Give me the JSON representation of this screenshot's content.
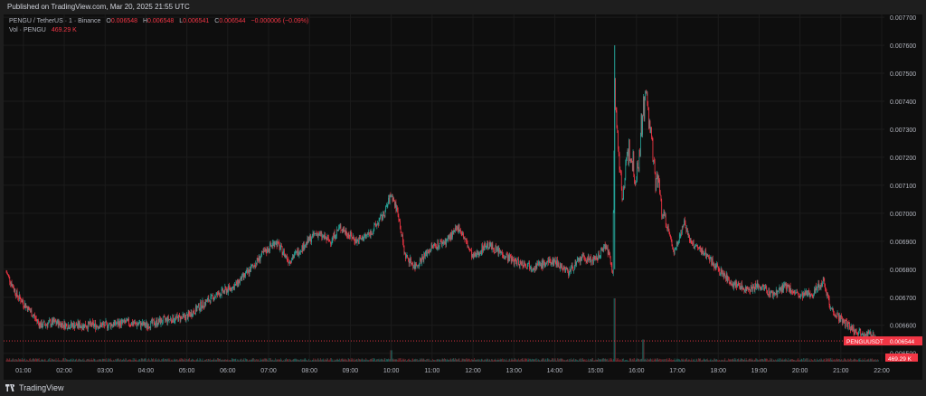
{
  "header": {
    "published": "Published on TradingView.com, Mar 20, 2025 21:55 UTC"
  },
  "legend": {
    "symbol": "PENGU / TetherUS · 1 · Binance",
    "o_label": "O",
    "o": "0.006548",
    "h_label": "H",
    "h": "0.006548",
    "l_label": "L",
    "l": "0.006541",
    "c_label": "C",
    "c": "0.006544",
    "change": "−0.000006 (−0.09%)",
    "vol_label": "Vol · PENGU",
    "vol_value": "469.29 K"
  },
  "price_tag": {
    "symbol": "PENGUUSDT",
    "price": "0.006544"
  },
  "volume_tag": "469.29 K",
  "footer": {
    "brand": "TradingView"
  },
  "colors": {
    "up": "#26a69a",
    "down": "#f23645",
    "background": "#0e0e0e",
    "grid": "#1c1c1c"
  },
  "chart_data": {
    "type": "candlestick",
    "y_ticks": [
      "0.007700",
      "0.007600",
      "0.007500",
      "0.007400",
      "0.007300",
      "0.007200",
      "0.007100",
      "0.007000",
      "0.006900",
      "0.006800",
      "0.006700",
      "0.006600",
      "0.006500"
    ],
    "ylim": [
      0.00647,
      0.00771
    ],
    "x_ticks": [
      "01:00",
      "02:00",
      "03:00",
      "04:00",
      "05:00",
      "06:00",
      "07:00",
      "08:00",
      "09:00",
      "10:00",
      "11:00",
      "12:00",
      "13:00",
      "14:00",
      "15:00",
      "16:00",
      "17:00",
      "18:00",
      "19:00",
      "20:00",
      "21:00",
      "22:00"
    ],
    "x_start": "00:35",
    "price_path": [
      [
        "00:35",
        0.00679
      ],
      [
        "00:50",
        0.00671
      ],
      [
        "01:10",
        0.00665
      ],
      [
        "01:25",
        0.0066
      ],
      [
        "01:45",
        0.00661
      ],
      [
        "02:05",
        0.0066
      ],
      [
        "02:30",
        0.0066
      ],
      [
        "03:00",
        0.0066
      ],
      [
        "03:30",
        0.00661
      ],
      [
        "04:00",
        0.0066
      ],
      [
        "04:30",
        0.00662
      ],
      [
        "05:00",
        0.00663
      ],
      [
        "05:20",
        0.00667
      ],
      [
        "05:45",
        0.00671
      ],
      [
        "06:10",
        0.00674
      ],
      [
        "06:30",
        0.00679
      ],
      [
        "06:50",
        0.00685
      ],
      [
        "07:10",
        0.0069
      ],
      [
        "07:30",
        0.00683
      ],
      [
        "07:50",
        0.00688
      ],
      [
        "08:10",
        0.00693
      ],
      [
        "08:30",
        0.0069
      ],
      [
        "08:45",
        0.00695
      ],
      [
        "09:10",
        0.0069
      ],
      [
        "09:30",
        0.00693
      ],
      [
        "09:50",
        0.007
      ],
      [
        "10:00",
        0.00707
      ],
      [
        "10:10",
        0.007
      ],
      [
        "10:20",
        0.00685
      ],
      [
        "10:35",
        0.00681
      ],
      [
        "11:00",
        0.00688
      ],
      [
        "11:20",
        0.0069
      ],
      [
        "11:40",
        0.00695
      ],
      [
        "12:00",
        0.00684
      ],
      [
        "12:20",
        0.00689
      ],
      [
        "12:40",
        0.00686
      ],
      [
        "13:00",
        0.00683
      ],
      [
        "13:30",
        0.00681
      ],
      [
        "14:00",
        0.00683
      ],
      [
        "14:20",
        0.00679
      ],
      [
        "14:40",
        0.00684
      ],
      [
        "15:00",
        0.00683
      ],
      [
        "15:15",
        0.00689
      ],
      [
        "15:25",
        0.0068
      ],
      [
        "15:28",
        0.00744
      ],
      [
        "15:32",
        0.00727
      ],
      [
        "15:40",
        0.00707
      ],
      [
        "15:50",
        0.00724
      ],
      [
        "16:00",
        0.00713
      ],
      [
        "16:10",
        0.00738
      ],
      [
        "16:15",
        0.00742
      ],
      [
        "16:25",
        0.00717
      ],
      [
        "16:40",
        0.007
      ],
      [
        "16:55",
        0.00686
      ],
      [
        "17:10",
        0.00697
      ],
      [
        "17:20",
        0.00689
      ],
      [
        "17:40",
        0.00686
      ],
      [
        "18:00",
        0.0068
      ],
      [
        "18:20",
        0.00675
      ],
      [
        "18:40",
        0.00673
      ],
      [
        "19:00",
        0.00674
      ],
      [
        "19:20",
        0.00671
      ],
      [
        "19:40",
        0.00674
      ],
      [
        "20:00",
        0.0067
      ],
      [
        "20:20",
        0.00672
      ],
      [
        "20:35",
        0.00676
      ],
      [
        "20:45",
        0.00666
      ],
      [
        "21:00",
        0.00662
      ],
      [
        "21:20",
        0.00658
      ],
      [
        "21:40",
        0.00657
      ],
      [
        "21:55",
        0.006544
      ]
    ],
    "volume_spikes": [
      [
        "15:28",
        1.0
      ],
      [
        "16:10",
        0.35
      ],
      [
        "10:00",
        0.18
      ]
    ],
    "last_price": 0.006544
  }
}
